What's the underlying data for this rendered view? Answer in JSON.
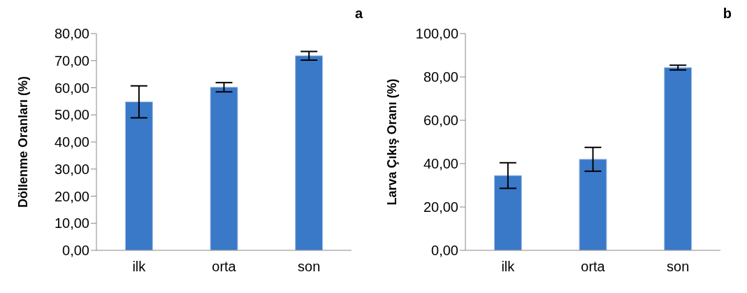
{
  "chart_data": [
    {
      "type": "bar",
      "title": "a",
      "ylabel": "Döllenme Oranları (%)",
      "categories": [
        "ilk",
        "orta",
        "son"
      ],
      "values": [
        54.8,
        60.2,
        71.8
      ],
      "errors": [
        5.9,
        1.7,
        1.6
      ],
      "color": "#3a78c8",
      "ylim": [
        0,
        80
      ],
      "yticks": [
        {
          "value": 0,
          "label": "0,00"
        },
        {
          "value": 10,
          "label": "10,00"
        },
        {
          "value": 20,
          "label": "20,00"
        },
        {
          "value": 30,
          "label": "30,00"
        },
        {
          "value": 40,
          "label": "40,00"
        },
        {
          "value": 50,
          "label": "50,00"
        },
        {
          "value": 60,
          "label": "60,00"
        },
        {
          "value": 70,
          "label": "70,00"
        },
        {
          "value": 80,
          "label": "80,00"
        }
      ],
      "grid": false,
      "legend": false
    },
    {
      "type": "bar",
      "title": "b",
      "ylabel": "Larva Çıkış Oranı (%)",
      "categories": [
        "ilk",
        "orta",
        "son"
      ],
      "values": [
        34.5,
        42.0,
        84.3
      ],
      "errors": [
        5.9,
        5.5,
        1.1
      ],
      "color": "#3a78c8",
      "ylim": [
        0,
        100
      ],
      "yticks": [
        {
          "value": 0,
          "label": "0,00"
        },
        {
          "value": 20,
          "label": "20,00"
        },
        {
          "value": 40,
          "label": "40,00"
        },
        {
          "value": 60,
          "label": "60,00"
        },
        {
          "value": 80,
          "label": "80,00"
        },
        {
          "value": 100,
          "label": "100,00"
        }
      ],
      "grid": false,
      "legend": false
    }
  ]
}
